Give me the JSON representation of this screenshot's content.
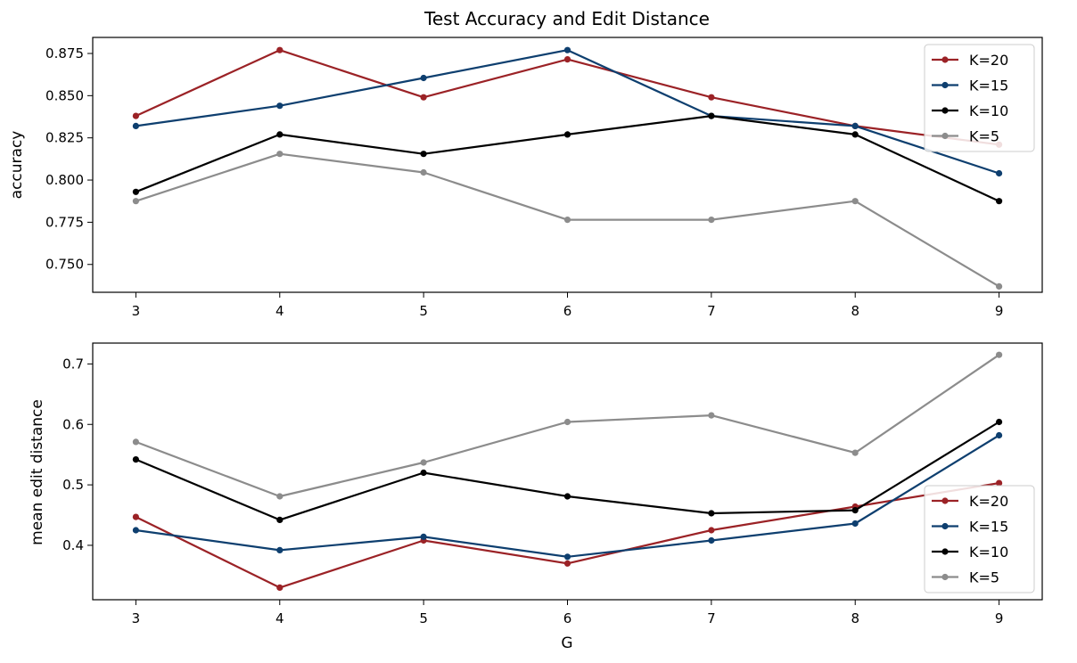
{
  "chart_data": [
    {
      "type": "line",
      "title": "Test Accuracy and Edit Distance",
      "xlabel": "",
      "ylabel": "accuracy",
      "x": [
        3,
        4,
        5,
        6,
        7,
        8,
        9
      ],
      "xticks": [
        3,
        4,
        5,
        6,
        7,
        8,
        9
      ],
      "xtick_labels": [
        "3",
        "4",
        "5",
        "6",
        "7",
        "8",
        "9"
      ],
      "xlim": [
        2.7,
        9.3
      ],
      "ylim": [
        0.7335,
        0.8845
      ],
      "yticks": [
        0.75,
        0.775,
        0.8,
        0.825,
        0.85,
        0.875
      ],
      "ytick_labels": [
        "0.750",
        "0.775",
        "0.800",
        "0.825",
        "0.850",
        "0.875"
      ],
      "grid": false,
      "legend_position": "top-right",
      "series": [
        {
          "name": "K=20",
          "color": "#9b2226",
          "values": [
            0.838,
            0.877,
            0.849,
            0.8715,
            0.849,
            0.832,
            0.821
          ]
        },
        {
          "name": "K=15",
          "color": "#0e3f6f",
          "values": [
            0.832,
            0.844,
            0.8605,
            0.877,
            0.838,
            0.832,
            0.804
          ]
        },
        {
          "name": "K=10",
          "color": "#000000",
          "values": [
            0.793,
            0.827,
            0.8155,
            0.827,
            0.838,
            0.827,
            0.7875
          ]
        },
        {
          "name": "K=5",
          "color": "#8c8c8c",
          "values": [
            0.7875,
            0.8155,
            0.8045,
            0.7765,
            0.7765,
            0.7875,
            0.737
          ]
        }
      ]
    },
    {
      "type": "line",
      "title": "",
      "xlabel": "G",
      "ylabel": "mean edit distance",
      "x": [
        3,
        4,
        5,
        6,
        7,
        8,
        9
      ],
      "xticks": [
        3,
        4,
        5,
        6,
        7,
        8,
        9
      ],
      "xtick_labels": [
        "3",
        "4",
        "5",
        "6",
        "7",
        "8",
        "9"
      ],
      "xlim": [
        2.7,
        9.3
      ],
      "ylim": [
        0.31,
        0.7345
      ],
      "yticks": [
        0.4,
        0.5,
        0.6,
        0.7
      ],
      "ytick_labels": [
        "0.4",
        "0.5",
        "0.6",
        "0.7"
      ],
      "grid": false,
      "legend_position": "lower-right",
      "series": [
        {
          "name": "K=20",
          "color": "#9b2226",
          "values": [
            0.447,
            0.33,
            0.408,
            0.37,
            0.425,
            0.464,
            0.503
          ]
        },
        {
          "name": "K=15",
          "color": "#0e3f6f",
          "values": [
            0.425,
            0.392,
            0.414,
            0.381,
            0.408,
            0.436,
            0.582
          ]
        },
        {
          "name": "K=10",
          "color": "#000000",
          "values": [
            0.542,
            0.442,
            0.52,
            0.481,
            0.453,
            0.458,
            0.604
          ]
        },
        {
          "name": "K=5",
          "color": "#8c8c8c",
          "values": [
            0.571,
            0.481,
            0.537,
            0.604,
            0.615,
            0.553,
            0.715
          ]
        }
      ]
    }
  ]
}
